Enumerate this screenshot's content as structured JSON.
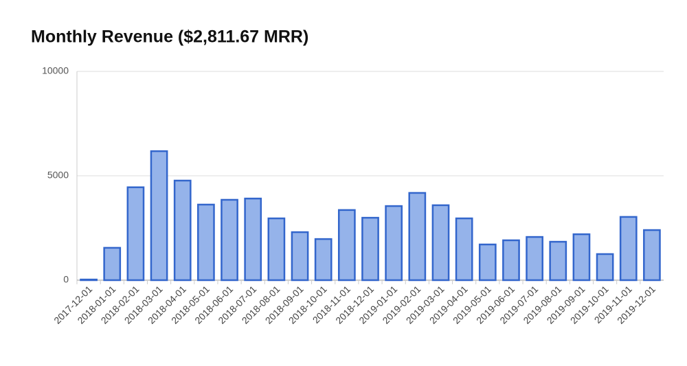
{
  "chart_data": {
    "type": "bar",
    "title": "Monthly Revenue ($2,811.67 MRR)",
    "categories": [
      "2017-12-01",
      "2018-01-01",
      "2018-02-01",
      "2018-03-01",
      "2018-04-01",
      "2018-05-01",
      "2018-06-01",
      "2018-07-01",
      "2018-08-01",
      "2018-09-01",
      "2018-10-01",
      "2018-11-01",
      "2018-12-01",
      "2019-01-01",
      "2019-02-01",
      "2019-03-01",
      "2019-04-01",
      "2019-05-01",
      "2019-06-01",
      "2019-07-01",
      "2019-08-01",
      "2019-09-01",
      "2019-10-01",
      "2019-11-01",
      "2019-12-01"
    ],
    "values": [
      30,
      1550,
      4450,
      6180,
      4770,
      3620,
      3850,
      3910,
      2960,
      2300,
      1970,
      3360,
      2990,
      3550,
      4180,
      3590,
      2960,
      1710,
      1910,
      2070,
      1840,
      2200,
      1250,
      3030,
      2400
    ],
    "color": "#95b3ea",
    "border_color": "#3366cc",
    "ylim": [
      0,
      10000
    ],
    "yticks": [
      0,
      5000,
      10000
    ],
    "grid": true
  }
}
